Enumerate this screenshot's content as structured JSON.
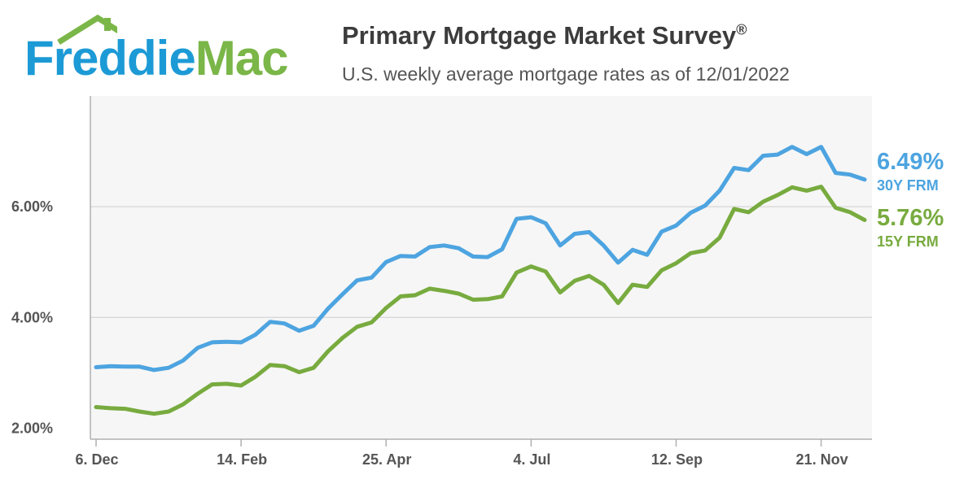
{
  "header": {
    "logo_part1": "Freddie",
    "logo_part2": "Mac",
    "title": "Primary Mortgage Market Survey",
    "title_mark": "®",
    "subtitle": "U.S. weekly average mortgage rates as of 12/01/2022"
  },
  "colors": {
    "blue": "#4da4e0",
    "green": "#78ab3f",
    "grid": "#d5d5d5",
    "axis": "#b0b0b0",
    "plot_bg": "#f6f6f6"
  },
  "chart_data": {
    "type": "line",
    "title": "Primary Mortgage Market Survey",
    "subtitle": "U.S. weekly average mortgage rates as of 12/01/2022",
    "xlabel": "",
    "ylabel": "",
    "x_tick_labels": [
      "6. Dec",
      "14. Feb",
      "25. Apr",
      "4. Jul",
      "12. Sep",
      "21. Nov"
    ],
    "x_tick_week_index": [
      0,
      10,
      20,
      30,
      40,
      50
    ],
    "y_ticks": [
      2,
      4,
      6
    ],
    "y_tick_labels": [
      "2.00%",
      "4.00%",
      "6.00%"
    ],
    "ylim": [
      1.8,
      8.0
    ],
    "grid": true,
    "series": [
      {
        "name": "30Y FRM",
        "end_label": "6.49%",
        "values": [
          3.1,
          3.12,
          3.11,
          3.11,
          3.05,
          3.09,
          3.22,
          3.45,
          3.55,
          3.56,
          3.55,
          3.69,
          3.92,
          3.89,
          3.76,
          3.85,
          4.16,
          4.42,
          4.67,
          4.72,
          5.0,
          5.11,
          5.1,
          5.27,
          5.3,
          5.25,
          5.1,
          5.09,
          5.23,
          5.78,
          5.81,
          5.7,
          5.3,
          5.51,
          5.54,
          5.3,
          4.99,
          5.22,
          5.13,
          5.55,
          5.66,
          5.89,
          6.02,
          6.29,
          6.7,
          6.66,
          6.92,
          6.94,
          7.08,
          6.95,
          7.08,
          6.61,
          6.58,
          6.49
        ]
      },
      {
        "name": "15Y FRM",
        "end_label": "5.76%",
        "values": [
          2.38,
          2.36,
          2.35,
          2.3,
          2.26,
          2.3,
          2.43,
          2.62,
          2.79,
          2.8,
          2.77,
          2.93,
          3.14,
          3.12,
          3.01,
          3.09,
          3.39,
          3.63,
          3.83,
          3.91,
          4.17,
          4.38,
          4.4,
          4.52,
          4.48,
          4.43,
          4.32,
          4.33,
          4.38,
          4.81,
          4.92,
          4.83,
          4.45,
          4.66,
          4.75,
          4.59,
          4.26,
          4.59,
          4.55,
          4.85,
          4.98,
          5.16,
          5.21,
          5.44,
          5.96,
          5.9,
          6.09,
          6.21,
          6.35,
          6.29,
          6.36,
          5.98,
          5.9,
          5.76
        ]
      }
    ]
  }
}
